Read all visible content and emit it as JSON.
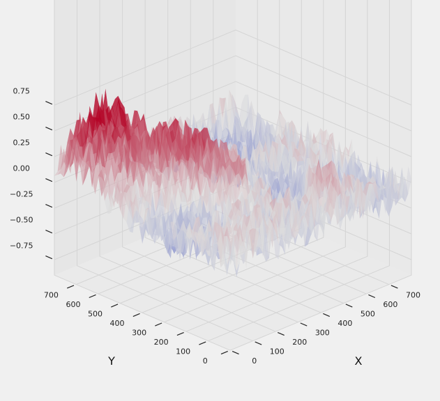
{
  "chart_data": {
    "type": "surface3d",
    "title": "",
    "xlabel": "X",
    "ylabel": "Y",
    "zlabel": "",
    "xlim": [
      0,
      799
    ],
    "ylim": [
      0,
      799
    ],
    "zlim": [
      -0.9,
      0.9
    ],
    "x_ticks": [
      "0",
      "100",
      "200",
      "300",
      "400",
      "500",
      "600",
      "700"
    ],
    "y_ticks": [
      "0",
      "100",
      "200",
      "300",
      "400",
      "500",
      "600",
      "700"
    ],
    "z_ticks": [
      "0.75",
      "0.50",
      "0.25",
      "0.00",
      "−0.25",
      "−0.50",
      "−0.75"
    ],
    "colormap": "coolwarm",
    "colormap_low": "#3b4cc0",
    "colormap_mid": "#dddddd",
    "colormap_high": "#b40426",
    "pane_color": "#e8e8e8",
    "grid": true,
    "z_center": 0.0,
    "noise_amplitude": 0.22,
    "peaks": [
      {
        "x": 85,
        "y": 700,
        "z": 0.55
      },
      {
        "x": 170,
        "y": 660,
        "z": 0.35
      },
      {
        "x": 260,
        "y": 540,
        "z": 0.3
      },
      {
        "x": 300,
        "y": 450,
        "z": 0.25
      },
      {
        "x": 400,
        "y": 350,
        "z": 0.2
      },
      {
        "x": 560,
        "y": 170,
        "z": 0.2
      }
    ],
    "valleys": [
      {
        "x": 640,
        "y": 640,
        "z": -0.3
      },
      {
        "x": 500,
        "y": 300,
        "z": -0.35
      },
      {
        "x": 700,
        "y": 150,
        "z": -0.2
      },
      {
        "x": 120,
        "y": 320,
        "z": -0.2
      }
    ]
  }
}
